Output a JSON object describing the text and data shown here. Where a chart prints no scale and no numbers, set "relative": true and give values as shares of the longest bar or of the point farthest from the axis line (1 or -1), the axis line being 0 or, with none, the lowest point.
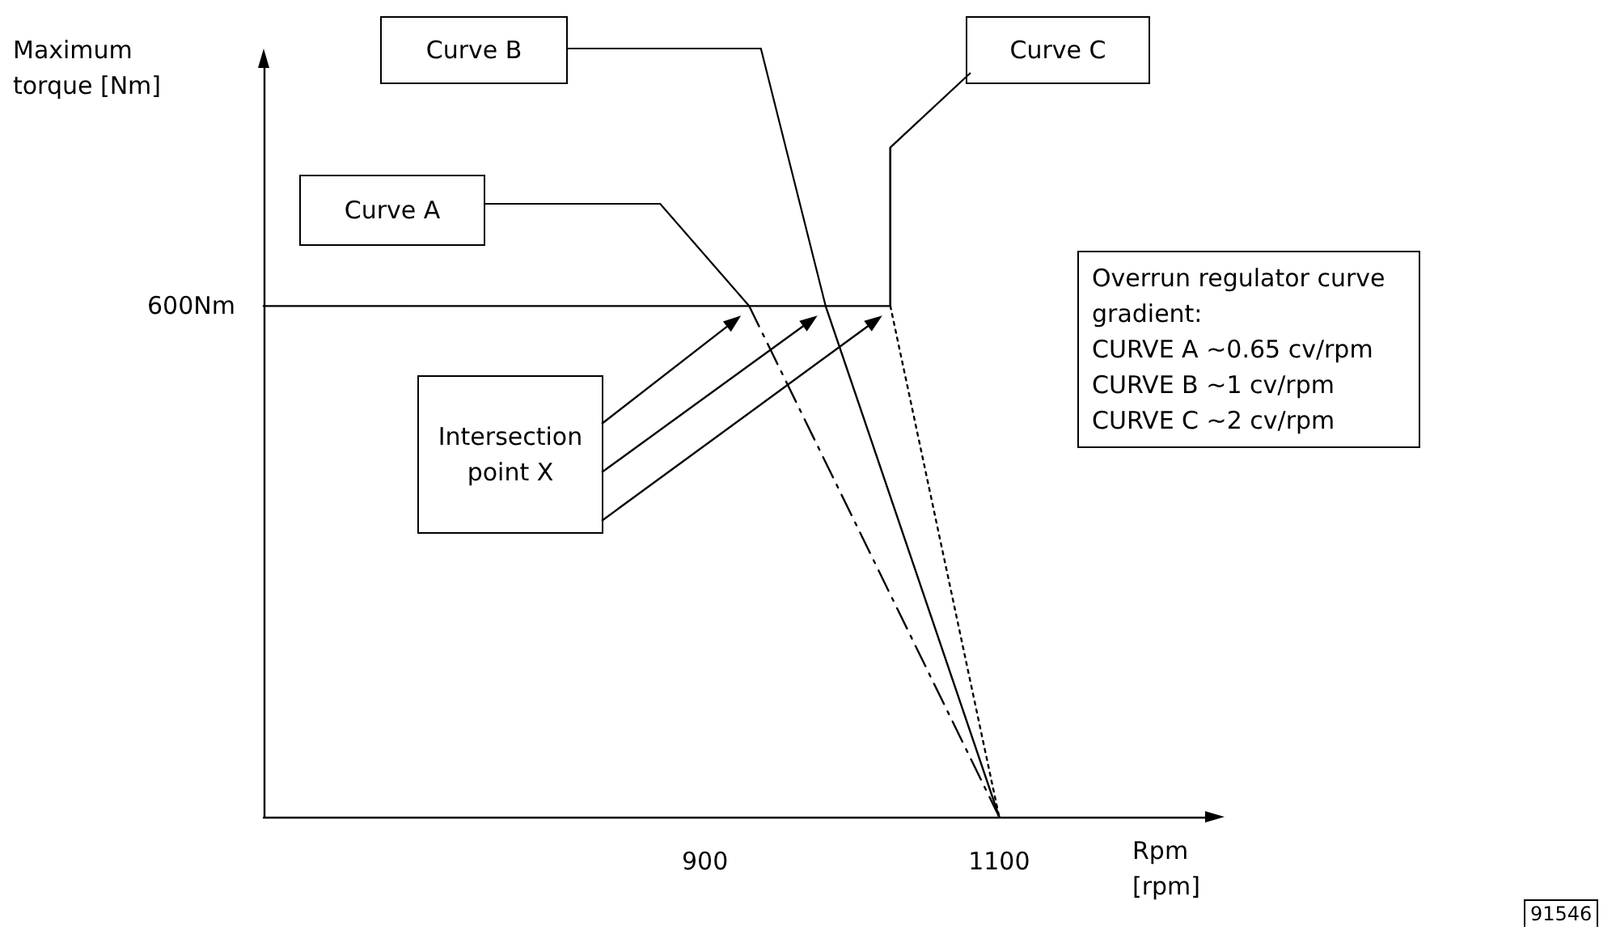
{
  "chart_data": {
    "type": "line",
    "relative": true,
    "xlabel": "Rpm\n[rpm]",
    "ylabel": "Maximum\ntorque [Nm]",
    "xlim": [
      600,
      1240
    ],
    "xticks": [
      900,
      1100
    ],
    "grid": false,
    "marker": "none",
    "series": [
      {
        "color": "#000000",
        "x": [
          600,
          1026
        ],
        "values": [
          0.764,
          0.764
        ],
        "line_style": "solid"
      },
      {
        "color": "#000000",
        "x": [
          930,
          1100
        ],
        "values": [
          0.764,
          0
        ],
        "line_style": "dashed"
      },
      {
        "color": "#000000",
        "x": [
          982,
          1100
        ],
        "values": [
          0.764,
          0
        ],
        "line_style": "solid"
      },
      {
        "color": "#000000",
        "x": [
          1026,
          1026
        ],
        "values": [
          1,
          0.764
        ],
        "line_style": "solid"
      },
      {
        "color": "#000000",
        "x": [
          1026,
          1100
        ],
        "values": [
          0.764,
          0
        ],
        "line_style": "dotted"
      }
    ],
    "annotations": [
      "Intersection point X",
      "Overrun regulator curve\ngradient:\nCURVE A ~0.65 cv/rpm\nCURVE B ~1 cv/rpm\nCURVE C ~2 cv/rpm",
      "91546",
      {
        "text": "600Nm",
        "x": 600,
        "y": 0.764
      },
      "Curve A",
      "Curve B",
      "Curve C"
    ]
  }
}
